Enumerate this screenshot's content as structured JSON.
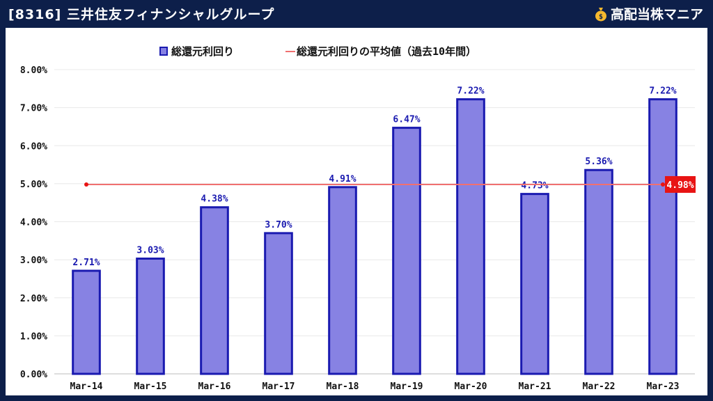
{
  "header": {
    "title": "[8316] 三井住友フィナンシャルグループ",
    "brand": "高配当株マニア",
    "brand_icon": "money-bag-icon"
  },
  "colors": {
    "background": "#0d1f4a",
    "bar_fill": "#8782e3",
    "bar_stroke": "#1a1ab0",
    "avg_line": "#f07070",
    "avg_label_bg": "#e81414",
    "data_label": "#1a1ab0"
  },
  "chart_data": {
    "type": "bar",
    "categories": [
      "Mar-14",
      "Mar-15",
      "Mar-16",
      "Mar-17",
      "Mar-18",
      "Mar-19",
      "Mar-20",
      "Mar-21",
      "Mar-22",
      "Mar-23"
    ],
    "series": [
      {
        "name": "総還元利回り",
        "values": [
          2.71,
          3.03,
          4.38,
          3.7,
          4.91,
          6.47,
          7.22,
          4.73,
          5.36,
          7.22
        ]
      }
    ],
    "data_labels": [
      "2.71%",
      "3.03%",
      "4.38%",
      "3.70%",
      "4.91%",
      "6.47%",
      "7.22%",
      "4.73%",
      "5.36%",
      "7.22%"
    ],
    "average": {
      "name": "総還元利回りの平均値（過去10年間）",
      "value": 4.98,
      "label": "4.98%"
    },
    "yticks": [
      "0.00%",
      "1.00%",
      "2.00%",
      "3.00%",
      "4.00%",
      "5.00%",
      "6.00%",
      "7.00%",
      "8.00%"
    ],
    "ylim": [
      0,
      8
    ],
    "grid": true,
    "legend_position": "top-center"
  }
}
